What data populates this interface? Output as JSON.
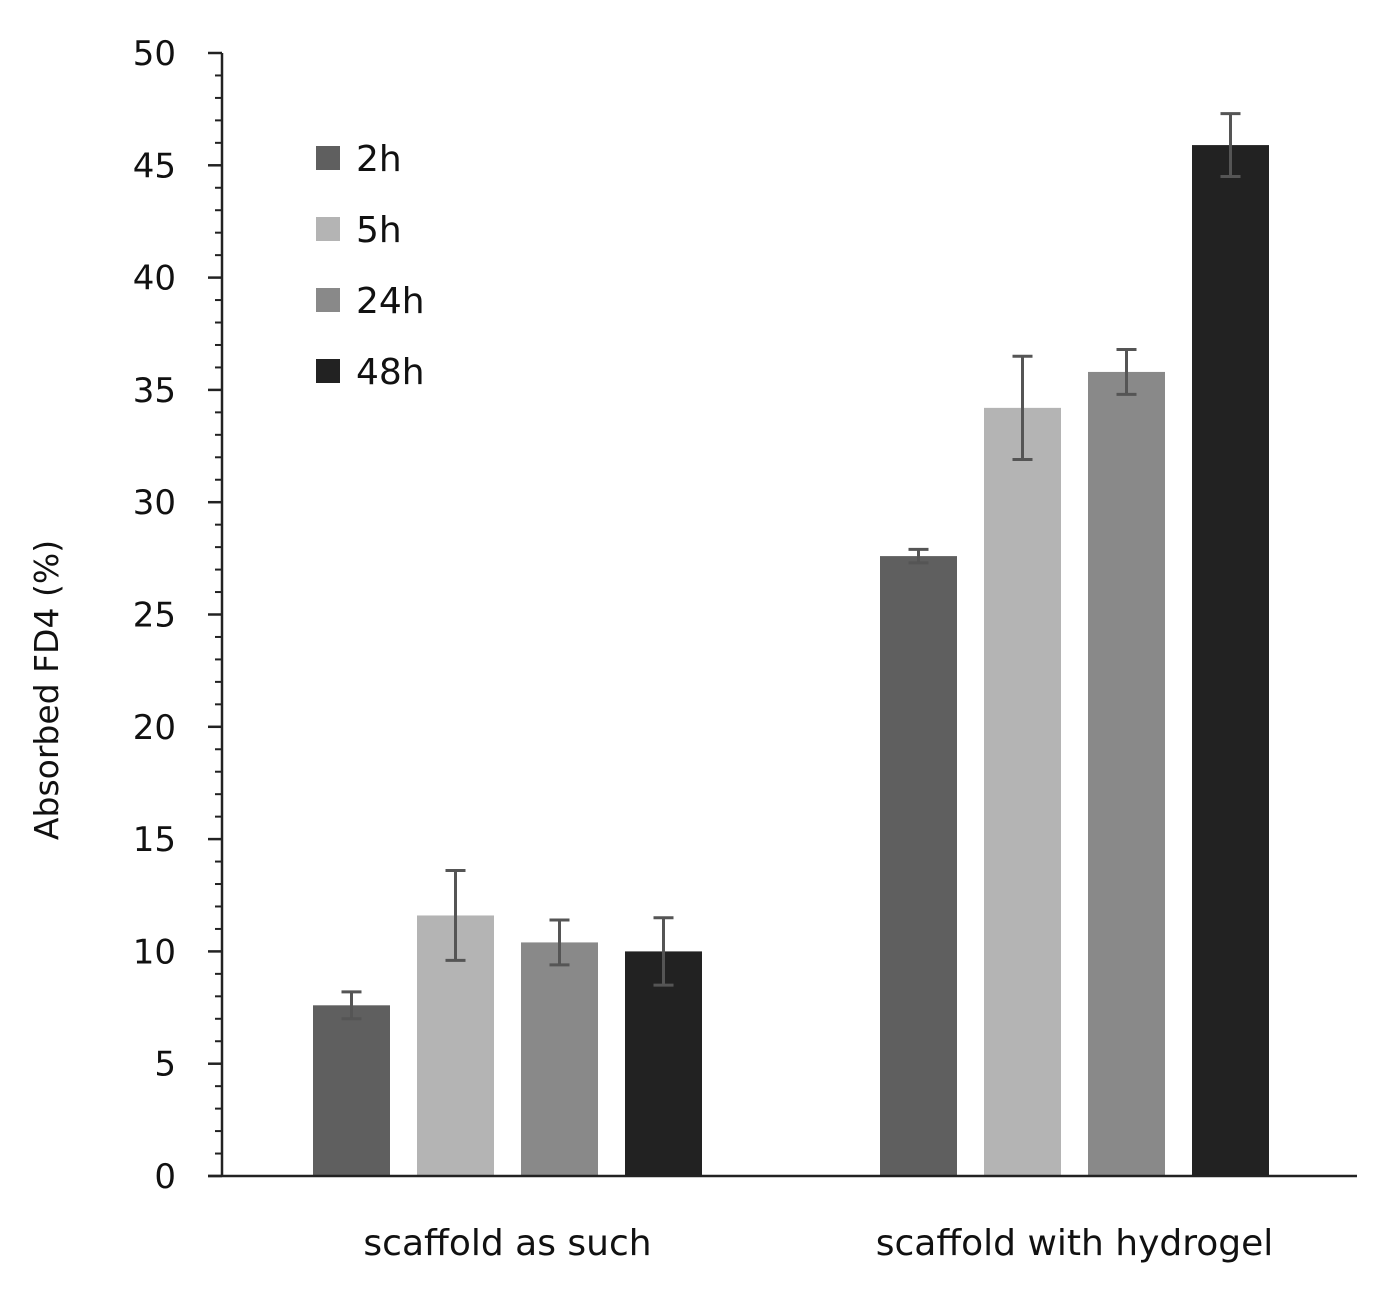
{
  "chart_data": {
    "type": "bar",
    "title": "",
    "xlabel": "",
    "ylabel": "Absorbed FD4 (%)",
    "ylim": [
      0,
      50
    ],
    "yticks": [
      0,
      5,
      10,
      15,
      20,
      25,
      30,
      35,
      40,
      45,
      50
    ],
    "grid": false,
    "legend_position": "top-left",
    "categories": [
      "scaffold as such",
      "scaffold with hydrogel"
    ],
    "series": [
      {
        "name": "2h",
        "color": "#5f5f5f",
        "values": [
          7.6,
          27.6
        ],
        "errors": [
          0.6,
          0.3
        ]
      },
      {
        "name": "5h",
        "color": "#b4b4b4",
        "values": [
          11.6,
          34.2
        ],
        "errors": [
          2.0,
          2.3
        ]
      },
      {
        "name": "24h",
        "color": "#898989",
        "values": [
          10.4,
          35.8
        ],
        "errors": [
          1.0,
          1.0
        ]
      },
      {
        "name": "48h",
        "color": "#222222",
        "values": [
          10.0,
          45.9
        ],
        "errors": [
          1.5,
          1.4
        ]
      }
    ]
  }
}
